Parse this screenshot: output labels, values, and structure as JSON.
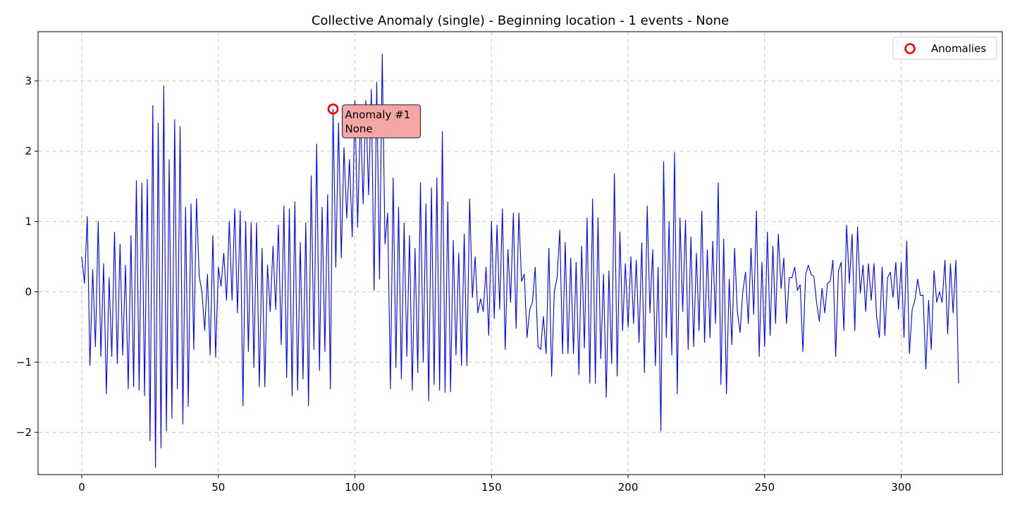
{
  "chart_data": {
    "type": "line",
    "title": "Collective Anomaly (single) - Beginning location - 1 events - None",
    "xlabel": "",
    "ylabel": "",
    "xlim": [
      -16,
      337
    ],
    "ylim": [
      -2.6,
      3.7
    ],
    "xticks": [
      0,
      50,
      100,
      150,
      200,
      250,
      300
    ],
    "yticks": [
      -2,
      -1,
      0,
      1,
      2,
      3
    ],
    "grid": true,
    "legend_position": "upper right",
    "line_color": "#0000ff",
    "anomaly_color": "#ff0000",
    "series": [
      {
        "x": [
          0,
          1,
          2,
          3,
          4,
          5,
          6,
          7,
          8,
          9,
          10,
          11,
          12,
          13,
          14,
          15,
          16,
          17,
          18,
          19,
          20,
          21,
          22,
          23,
          24,
          25,
          26,
          27,
          28,
          29,
          30,
          31,
          32,
          33,
          34,
          35,
          36,
          37,
          38,
          39,
          40,
          41,
          42,
          43,
          44,
          45,
          46,
          47,
          48,
          49,
          50,
          51,
          52,
          53,
          54,
          55,
          56,
          57,
          58,
          59,
          60,
          61,
          62,
          63,
          64,
          65,
          66,
          67,
          68,
          69,
          70,
          71,
          72,
          73,
          74,
          75,
          76,
          77,
          78,
          79,
          80,
          81,
          82,
          83,
          84,
          85,
          86,
          87,
          88,
          89,
          90,
          91,
          92,
          93,
          94,
          95,
          96,
          97,
          98,
          99,
          100,
          101,
          102,
          103,
          104,
          105,
          106,
          107,
          108,
          109,
          110,
          111,
          112,
          113,
          114,
          115,
          116,
          117,
          118,
          119,
          120,
          121,
          122,
          123,
          124,
          125,
          126,
          127,
          128,
          129,
          130,
          131,
          132,
          133,
          134,
          135,
          136,
          137,
          138,
          139,
          140,
          141,
          142,
          143,
          144,
          145,
          146,
          147,
          148,
          149,
          150,
          151,
          152,
          153,
          154,
          155,
          156,
          157,
          158,
          159,
          160,
          161,
          162,
          163,
          164,
          165,
          166,
          167,
          168,
          169,
          170,
          171,
          172,
          173,
          174,
          175,
          176,
          177,
          178,
          179,
          180,
          181,
          182,
          183,
          184,
          185,
          186,
          187,
          188,
          189,
          190,
          191,
          192,
          193,
          194,
          195,
          196,
          197,
          198,
          199,
          200,
          201,
          202,
          203,
          204,
          205,
          206,
          207,
          208,
          209,
          210,
          211,
          212,
          213,
          214,
          215,
          216,
          217,
          218,
          219,
          220,
          221,
          222,
          223,
          224,
          225,
          226,
          227,
          228,
          229,
          230,
          231,
          232,
          233,
          234,
          235,
          236,
          237,
          238,
          239,
          240,
          241,
          242,
          243,
          244,
          245,
          246,
          247,
          248,
          249,
          250,
          251,
          252,
          253,
          254,
          255,
          256,
          257,
          258,
          259,
          260,
          261,
          262,
          263,
          264,
          265,
          266,
          267,
          268,
          269,
          270,
          271,
          272,
          273,
          274,
          275,
          276,
          277,
          278,
          279,
          280,
          281,
          282,
          283,
          284,
          285,
          286,
          287,
          288,
          289,
          290,
          291,
          292,
          293,
          294,
          295,
          296,
          297,
          298,
          299,
          300,
          301,
          302,
          303,
          304,
          305,
          306,
          307,
          308,
          309,
          310,
          311,
          312,
          313,
          314,
          315,
          316,
          317,
          318,
          319,
          320,
          321
        ],
        "y": [
          0.5,
          0.12,
          1.07,
          -1.05,
          0.32,
          -0.78,
          1.0,
          -0.92,
          0.4,
          -1.45,
          0.2,
          -0.92,
          0.85,
          -1.02,
          0.68,
          -0.9,
          0.38,
          -1.38,
          0.8,
          -1.35,
          1.58,
          -1.4,
          1.55,
          -1.48,
          1.6,
          -2.12,
          2.65,
          -2.5,
          2.4,
          -2.22,
          2.93,
          -1.98,
          1.88,
          -1.8,
          2.45,
          -1.38,
          2.35,
          -1.88,
          1.2,
          -1.63,
          1.25,
          -0.82,
          1.32,
          0.22,
          0.0,
          -0.55,
          0.25,
          -0.9,
          0.8,
          -0.93,
          0.35,
          0.08,
          0.55,
          -0.12,
          1.0,
          -0.12,
          1.18,
          -0.3,
          1.15,
          -1.62,
          1.0,
          -0.85,
          0.98,
          -1.08,
          0.98,
          -1.35,
          0.62,
          -1.35,
          0.38,
          -0.28,
          0.65,
          -0.25,
          0.95,
          -0.75,
          1.22,
          -1.22,
          1.18,
          -1.48,
          1.28,
          -1.4,
          0.7,
          -1.24,
          0.98,
          -1.62,
          1.65,
          -0.82,
          2.1,
          -1.12,
          1.2,
          -0.85,
          1.38,
          -1.38,
          2.6,
          0.35,
          2.4,
          0.48,
          2.05,
          1.05,
          1.88,
          0.78,
          2.72,
          0.92,
          2.55,
          1.25,
          2.72,
          1.38,
          2.88,
          0.02,
          2.98,
          0.18,
          3.38,
          0.68,
          1.12,
          -1.38,
          1.62,
          -1.08,
          1.2,
          -1.24,
          0.98,
          -0.92,
          0.8,
          -1.4,
          0.62,
          -1.15,
          1.55,
          -1.0,
          1.25,
          -1.55,
          1.48,
          -1.32,
          1.62,
          -1.4,
          2.28,
          -1.43,
          1.28,
          -1.42,
          0.73,
          -0.9,
          0.55,
          -1.05,
          0.82,
          -1.05,
          1.32,
          -0.08,
          0.5,
          -0.3,
          -0.1,
          -0.28,
          0.35,
          -0.62,
          1.0,
          -0.38,
          0.95,
          -0.25,
          1.18,
          -0.82,
          0.6,
          -0.15,
          1.12,
          -0.52,
          1.12,
          0.15,
          0.25,
          -0.65,
          -0.25,
          -0.15,
          0.35,
          -0.78,
          -0.82,
          -0.35,
          -0.88,
          0.62,
          -1.2,
          0.0,
          0.2,
          0.88,
          -0.88,
          0.7,
          -0.88,
          0.48,
          -0.88,
          0.42,
          -1.18,
          0.65,
          -0.8,
          1.05,
          -1.3,
          1.32,
          -1.3,
          1.05,
          -0.95,
          0.25,
          -1.5,
          0.3,
          -1.02,
          1.68,
          -1.2,
          0.85,
          -0.55,
          0.4,
          -0.5,
          0.5,
          -0.45,
          0.45,
          -0.72,
          0.7,
          -1.15,
          1.22,
          -0.3,
          0.6,
          -1.05,
          0.35,
          -1.98,
          1.85,
          -0.65,
          1.0,
          -0.9,
          1.98,
          -1.45,
          1.05,
          -0.28,
          1.02,
          -0.82,
          0.78,
          -0.78,
          0.55,
          -0.55,
          1.15,
          -0.72,
          0.6,
          -0.65,
          0.72,
          -0.45,
          1.55,
          -1.32,
          0.75,
          -1.45,
          0.18,
          -0.75,
          0.62,
          -0.28,
          -0.58,
          0.0,
          0.28,
          -0.45,
          0.62,
          -0.32,
          1.15,
          -0.92,
          0.42,
          -0.78,
          0.85,
          -0.62,
          0.65,
          -0.45,
          0.82,
          0.05,
          0.48,
          -0.45,
          0.2,
          0.2,
          0.35,
          0.02,
          0.1,
          -0.85,
          0.25,
          0.38,
          0.25,
          0.22,
          -0.15,
          -0.42,
          0.05,
          -0.3,
          0.12,
          0.15,
          0.45,
          -0.92,
          0.3,
          0.42,
          -0.55,
          0.95,
          0.12,
          0.82,
          -0.55,
          0.92,
          -0.02,
          0.38,
          -0.28,
          0.4,
          -0.12,
          0.4,
          -0.35,
          -0.65,
          0.35,
          -0.62,
          0.2,
          0.28,
          -0.08,
          0.42,
          -0.25,
          0.42,
          -0.65,
          0.72,
          -0.88,
          -0.25,
          -0.12,
          0.18,
          -0.05,
          -0.05,
          -1.1,
          -0.12,
          -0.82,
          0.3,
          -0.15,
          0.0,
          -0.15,
          0.45,
          -0.6,
          0.4,
          -0.3,
          0.45,
          -1.3
        ]
      }
    ],
    "legend": [
      {
        "label": "Anomalies",
        "marker": "open-circle",
        "color": "#ff0000"
      }
    ],
    "anomalies": [
      {
        "x": 92,
        "y": 2.6
      }
    ],
    "annotations": [
      {
        "line1": "Anomaly #1",
        "line2": "None",
        "anchor_x": 92,
        "anchor_y": 2.6,
        "fill": "#f4a6a6"
      }
    ]
  }
}
